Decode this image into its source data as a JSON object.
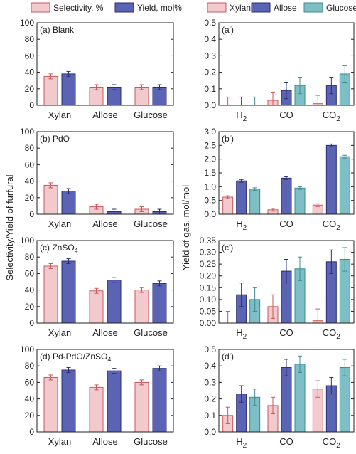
{
  "figure": {
    "y_axis_left": "Selectivity/Yield of furfural",
    "y_axis_right": "Yield of gas, mol/mol",
    "legend_left": [
      {
        "label": "Selectivity, %",
        "color": "#f2c9cc",
        "edge": "#c8585f"
      },
      {
        "label": "Yield, mol%",
        "color": "#5b63b5",
        "edge": "#2a2f6e"
      }
    ],
    "legend_right": [
      {
        "label": "Xylan",
        "color": "#f2c9cc",
        "edge": "#c8585f"
      },
      {
        "label": "Allose",
        "color": "#5b63b5",
        "edge": "#2a2f6e"
      },
      {
        "label": "Glucose",
        "color": "#7dbfc4",
        "edge": "#3d8b92"
      }
    ]
  },
  "chart_data": [
    {
      "type": "bar",
      "panel": "(a) Blank",
      "categories": [
        "Xylan",
        "Allose",
        "Glucose"
      ],
      "ylim": [
        0,
        100
      ],
      "yticks": [
        0,
        20,
        40,
        60,
        80,
        100
      ],
      "series": [
        {
          "name": "Selectivity, %",
          "values": [
            35,
            22,
            22
          ],
          "errors": [
            3,
            3,
            3
          ]
        },
        {
          "name": "Yield, mol%",
          "values": [
            38,
            22,
            22
          ],
          "errors": [
            3,
            3,
            3
          ]
        }
      ]
    },
    {
      "type": "bar",
      "panel": "(b) PdO",
      "categories": [
        "Xylan",
        "Allose",
        "Glucose"
      ],
      "ylim": [
        0,
        100
      ],
      "yticks": [
        0,
        20,
        40,
        60,
        80,
        100
      ],
      "series": [
        {
          "name": "Selectivity, %",
          "values": [
            35,
            9,
            6
          ],
          "errors": [
            3,
            3,
            3
          ]
        },
        {
          "name": "Yield, mol%",
          "values": [
            28,
            3,
            3
          ],
          "errors": [
            3,
            3,
            3
          ]
        }
      ]
    },
    {
      "type": "bar",
      "panel": "(c) ZnSO₄",
      "categories": [
        "Xylan",
        "Allose",
        "Glucose"
      ],
      "ylim": [
        0,
        100
      ],
      "yticks": [
        0,
        20,
        40,
        60,
        80,
        100
      ],
      "series": [
        {
          "name": "Selectivity, %",
          "values": [
            69,
            39,
            40
          ],
          "errors": [
            3,
            3,
            3
          ]
        },
        {
          "name": "Yield, mol%",
          "values": [
            75,
            52,
            48
          ],
          "errors": [
            3,
            3,
            3
          ]
        }
      ]
    },
    {
      "type": "bar",
      "panel": "(d) Pd-PdO/ZnSO₄",
      "categories": [
        "Xylan",
        "Allose",
        "Glucose"
      ],
      "ylim": [
        0,
        100
      ],
      "yticks": [
        0,
        20,
        40,
        60,
        80,
        100
      ],
      "series": [
        {
          "name": "Selectivity, %",
          "values": [
            66,
            54,
            60
          ],
          "errors": [
            3,
            3,
            3
          ]
        },
        {
          "name": "Yield, mol%",
          "values": [
            75,
            74,
            77
          ],
          "errors": [
            3,
            3,
            3
          ]
        }
      ]
    },
    {
      "type": "bar",
      "panel": "(a')",
      "categories": [
        "H₂",
        "CO",
        "CO₂"
      ],
      "ylim": [
        0,
        0.5
      ],
      "yticks": [
        0.0,
        0.1,
        0.2,
        0.3,
        0.4,
        0.5
      ],
      "series": [
        {
          "name": "Xylan",
          "values": [
            0.0,
            0.03,
            0.01
          ],
          "errors": [
            0.05,
            0.05,
            0.05
          ]
        },
        {
          "name": "Allose",
          "values": [
            0.0,
            0.09,
            0.12
          ],
          "errors": [
            0.05,
            0.05,
            0.05
          ]
        },
        {
          "name": "Glucose",
          "values": [
            0.0,
            0.12,
            0.19
          ],
          "errors": [
            0.05,
            0.05,
            0.05
          ]
        }
      ]
    },
    {
      "type": "bar",
      "panel": "(b')",
      "categories": [
        "H₂",
        "CO",
        "CO₂"
      ],
      "ylim": [
        0,
        3.0
      ],
      "yticks": [
        0.0,
        0.5,
        1.0,
        1.5,
        2.0,
        2.5,
        3.0
      ],
      "series": [
        {
          "name": "Xylan",
          "values": [
            0.62,
            0.16,
            0.33
          ],
          "errors": [
            0.05,
            0.05,
            0.05
          ]
        },
        {
          "name": "Allose",
          "values": [
            1.21,
            1.31,
            2.5
          ],
          "errors": [
            0.05,
            0.05,
            0.05
          ]
        },
        {
          "name": "Glucose",
          "values": [
            0.91,
            0.95,
            2.09
          ],
          "errors": [
            0.05,
            0.05,
            0.05
          ]
        }
      ]
    },
    {
      "type": "bar",
      "panel": "(c')",
      "categories": [
        "H₂",
        "CO",
        "CO₂"
      ],
      "ylim": [
        0,
        0.35
      ],
      "yticks": [
        0.0,
        0.05,
        0.1,
        0.15,
        0.2,
        0.25,
        0.3,
        0.35
      ],
      "series": [
        {
          "name": "Xylan",
          "values": [
            0.0,
            0.07,
            0.01
          ],
          "errors": [
            0.05,
            0.05,
            0.05
          ]
        },
        {
          "name": "Allose",
          "values": [
            0.12,
            0.22,
            0.26
          ],
          "errors": [
            0.05,
            0.05,
            0.05
          ]
        },
        {
          "name": "Glucose",
          "values": [
            0.1,
            0.23,
            0.27
          ],
          "errors": [
            0.05,
            0.05,
            0.05
          ]
        }
      ]
    },
    {
      "type": "bar",
      "panel": "(d')",
      "categories": [
        "H₂",
        "CO",
        "CO₂"
      ],
      "ylim": [
        0,
        0.5
      ],
      "yticks": [
        0.0,
        0.1,
        0.2,
        0.3,
        0.4,
        0.5
      ],
      "series": [
        {
          "name": "Xylan",
          "values": [
            0.1,
            0.16,
            0.26
          ],
          "errors": [
            0.05,
            0.05,
            0.05
          ]
        },
        {
          "name": "Allose",
          "values": [
            0.23,
            0.39,
            0.28
          ],
          "errors": [
            0.05,
            0.05,
            0.05
          ]
        },
        {
          "name": "Glucose",
          "values": [
            0.21,
            0.41,
            0.39
          ],
          "errors": [
            0.05,
            0.05,
            0.05
          ]
        }
      ]
    }
  ]
}
